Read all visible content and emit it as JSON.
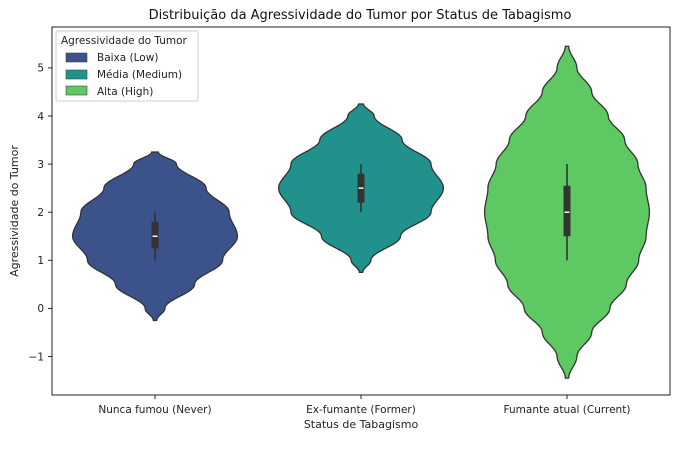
{
  "chart_data": {
    "type": "violin",
    "title": "Distribuição da Agressividade do Tumor por Status de Tabagismo",
    "xlabel": "Status de Tabagismo",
    "ylabel": "Agressividade do Tumor",
    "categories": [
      "Nunca fumou (Never)",
      "Ex-fumante (Former)",
      "Fumante atual (Current)"
    ],
    "ylim": [
      -1.8,
      5.85
    ],
    "yticks": [
      -1,
      0,
      1,
      2,
      3,
      4,
      5
    ],
    "ytick_labels": [
      "−1",
      "0",
      "1",
      "2",
      "3",
      "4",
      "5"
    ],
    "grid": false,
    "legend": {
      "title": "Agressividade do Tumor",
      "position": "top-left",
      "entries": [
        {
          "label": "Baixa (Low)",
          "color": "#3b528b"
        },
        {
          "label": "Média (Medium)",
          "color": "#21918c"
        },
        {
          "label": "Alta (High)",
          "color": "#5ec962"
        }
      ]
    },
    "series": [
      {
        "category": "Nunca fumou (Never)",
        "color": "#3b528b",
        "violin_min": -0.25,
        "violin_max": 3.25,
        "profile": [
          [
            -0.25,
            0.02
          ],
          [
            0,
            0.12
          ],
          [
            0.5,
            0.48
          ],
          [
            1,
            0.82
          ],
          [
            1.5,
            1.0
          ],
          [
            2,
            0.9
          ],
          [
            2.5,
            0.62
          ],
          [
            3,
            0.26
          ],
          [
            3.25,
            0.04
          ]
        ],
        "whisker": [
          1,
          2
        ],
        "q1": 1.25,
        "median": 1.5,
        "q3": 1.8
      },
      {
        "category": "Ex-fumante (Former)",
        "color": "#21918c",
        "violin_min": 0.75,
        "violin_max": 4.25,
        "profile": [
          [
            0.75,
            0.02
          ],
          [
            1,
            0.12
          ],
          [
            1.5,
            0.48
          ],
          [
            2,
            0.85
          ],
          [
            2.5,
            1.0
          ],
          [
            3,
            0.85
          ],
          [
            3.5,
            0.5
          ],
          [
            4,
            0.16
          ],
          [
            4.25,
            0.03
          ]
        ],
        "whisker": [
          2,
          3
        ],
        "q1": 2.2,
        "median": 2.5,
        "q3": 2.8
      },
      {
        "category": "Fumante atual (Current)",
        "color": "#5ec962",
        "violin_min": -1.45,
        "violin_max": 5.45,
        "profile": [
          [
            -1.45,
            0.02
          ],
          [
            -1,
            0.12
          ],
          [
            -0.5,
            0.3
          ],
          [
            0,
            0.52
          ],
          [
            0.5,
            0.72
          ],
          [
            1,
            0.87
          ],
          [
            1.5,
            0.96
          ],
          [
            2,
            1.0
          ],
          [
            2.5,
            0.96
          ],
          [
            3,
            0.86
          ],
          [
            3.5,
            0.7
          ],
          [
            4,
            0.5
          ],
          [
            4.5,
            0.3
          ],
          [
            5,
            0.12
          ],
          [
            5.45,
            0.02
          ]
        ],
        "whisker": [
          1,
          3
        ],
        "q1": 1.5,
        "median": 2.0,
        "q3": 2.55
      }
    ]
  }
}
